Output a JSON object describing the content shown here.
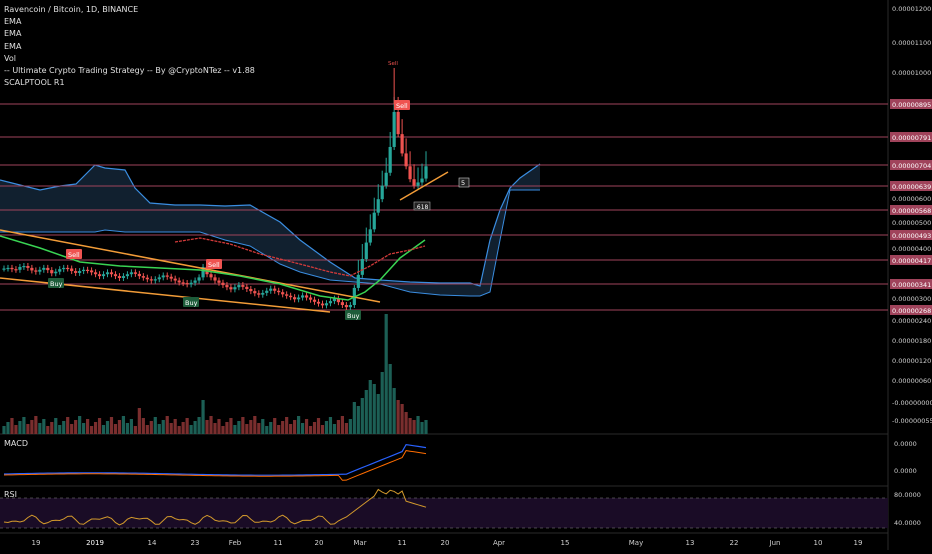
{
  "header": {
    "symbol_line": "Ravencoin / Bitcoin, 1D, BINANCE",
    "indicators": [
      "EMA",
      "EMA",
      "EMA",
      "Vol",
      "-- Ultimate Crypto Trading Strategy -- By @CryptoNTez -- v1.88",
      "SCALPTOOL R1"
    ]
  },
  "panes": {
    "macd_label": "MACD",
    "rsi_label": "RSI"
  },
  "colors": {
    "background": "#000000",
    "up": "#26a69a",
    "down": "#ef5350",
    "hline": "#a0435b",
    "trend": "#f29c38",
    "cloud": "#1f3a55",
    "ema_fast": "#39d353",
    "ema_slow": "#d23a3a",
    "rsi": "#d39a2c"
  },
  "chart_data": {
    "type": "candlestick",
    "price_axis": {
      "ticks": [
        "0.00001200",
        "0.00001100",
        "0.00001000",
        "0.00000600",
        "0.00000500",
        "0.00000400",
        "0.00000300",
        "0.00000240",
        "0.00000180",
        "0.00000120",
        "0.00000060",
        "-0.00000000",
        "-0.00000055"
      ],
      "labeled_levels": [
        {
          "label": "0.00000895",
          "value": 8.95e-06
        },
        {
          "label": "0.00000791",
          "value": 7.91e-06
        },
        {
          "label": "0.00000704",
          "value": 7.04e-06
        },
        {
          "label": "0.00000639",
          "value": 6.39e-06
        },
        {
          "label": "0.00000568",
          "value": 5.68e-06
        },
        {
          "label": "0.00000493",
          "value": 4.93e-06
        },
        {
          "label": "0.00000417",
          "value": 4.17e-06
        },
        {
          "label": "0.00000341",
          "value": 3.41e-06
        },
        {
          "label": "0.00000268",
          "value": 2.68e-06
        }
      ]
    },
    "time_axis": [
      "19",
      "2019",
      "14",
      "23",
      "Feb",
      "11",
      "20",
      "Mar",
      "11",
      "20",
      "Apr",
      "15",
      "May",
      "13",
      "22",
      "Jun",
      "10",
      "19"
    ],
    "candles_close": [
      3.9e-06,
      3.92e-06,
      3.88e-06,
      3.86e-06,
      3.95e-06,
      3.98e-06,
      3.92e-06,
      3.84e-06,
      3.8e-06,
      3.86e-06,
      3.92e-06,
      3.85e-06,
      3.75e-06,
      3.8e-06,
      3.88e-06,
      3.92e-06,
      3.9e-06,
      3.82e-06,
      3.76e-06,
      3.82e-06,
      3.86e-06,
      3.84e-06,
      3.78e-06,
      3.72e-06,
      3.66e-06,
      3.72e-06,
      3.78e-06,
      3.72e-06,
      3.66e-06,
      3.6e-06,
      3.66e-06,
      3.72e-06,
      3.78e-06,
      3.73e-06,
      3.66e-06,
      3.61e-06,
      3.56e-06,
      3.52e-06,
      3.56e-06,
      3.62e-06,
      3.68e-06,
      3.64e-06,
      3.58e-06,
      3.52e-06,
      3.46e-06,
      3.44e-06,
      3.4e-06,
      3.45e-06,
      3.52e-06,
      3.62e-06,
      3.95e-06,
      3.72e-06,
      3.62e-06,
      3.52e-06,
      3.45e-06,
      3.38e-06,
      3.32e-06,
      3.26e-06,
      3.32e-06,
      3.38e-06,
      3.33e-06,
      3.27e-06,
      3.21e-06,
      3.15e-06,
      3.11e-06,
      3.16e-06,
      3.22e-06,
      3.28e-06,
      3.22e-06,
      3.18e-06,
      3.12e-06,
      3.08e-06,
      3.04e-06,
      2.98e-06,
      3.03e-06,
      3.09e-06,
      3.03e-06,
      2.97e-06,
      2.91e-06,
      2.86e-06,
      2.81e-06,
      2.87e-06,
      2.93e-06,
      3e-06,
      2.9e-06,
      2.82e-06,
      2.76e-06,
      2.82e-06,
      3.3e-06,
      3.7e-06,
      4.2e-06,
      4.7e-06,
      5.1e-06,
      5.6e-06,
      6e-06,
      6.4e-06,
      6.8e-06,
      7.6e-06,
      8.7e-06,
      8e-06,
      7.4e-06,
      7e-06,
      6.6e-06,
      6.4e-06,
      6.5e-06,
      6.62e-06,
      7e-06
    ],
    "annotations": [
      "Sell",
      "Buy",
      "Sell",
      "Buy",
      "Sell",
      "Buy",
      "Sell",
      ".618",
      "5"
    ],
    "macd_ticks": [
      "0.0000",
      "0.0000"
    ],
    "rsi_ticks": [
      "80.0000",
      "40.0000"
    ],
    "rsi_last": 62
  }
}
